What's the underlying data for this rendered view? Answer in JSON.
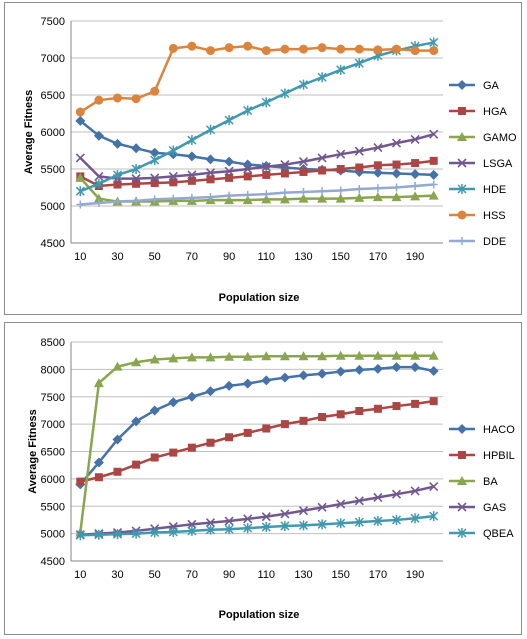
{
  "chart_data": [
    {
      "type": "line",
      "xlabel": "Population size",
      "ylabel": "Average Fitness",
      "ylim": [
        4500,
        7500
      ],
      "yticks": [
        4500,
        5000,
        5500,
        6000,
        6500,
        7000,
        7500
      ],
      "xticks": [
        10,
        30,
        50,
        70,
        90,
        110,
        130,
        150,
        170,
        190
      ],
      "x": [
        10,
        20,
        30,
        40,
        50,
        60,
        70,
        80,
        90,
        100,
        110,
        120,
        130,
        140,
        150,
        160,
        170,
        180,
        190,
        200
      ],
      "grid": "horizontal",
      "legend": "right",
      "series": [
        {
          "name": "GA",
          "color": "#4573a7",
          "marker": "diamond",
          "values": [
            6150,
            5950,
            5840,
            5780,
            5720,
            5700,
            5670,
            5630,
            5600,
            5560,
            5540,
            5520,
            5500,
            5490,
            5480,
            5460,
            5450,
            5440,
            5430,
            5420
          ]
        },
        {
          "name": "HGA",
          "color": "#aa4643",
          "marker": "square",
          "values": [
            5400,
            5270,
            5290,
            5300,
            5310,
            5320,
            5340,
            5360,
            5380,
            5400,
            5420,
            5440,
            5460,
            5480,
            5500,
            5520,
            5550,
            5560,
            5580,
            5610
          ]
        },
        {
          "name": "GAMO",
          "color": "#89a54e",
          "marker": "triangle",
          "values": [
            5380,
            5100,
            5060,
            5060,
            5060,
            5070,
            5070,
            5080,
            5080,
            5080,
            5090,
            5090,
            5100,
            5100,
            5100,
            5110,
            5120,
            5120,
            5130,
            5140
          ]
        },
        {
          "name": "LSGA",
          "color": "#71588f",
          "marker": "x",
          "values": [
            5650,
            5400,
            5370,
            5370,
            5380,
            5400,
            5420,
            5450,
            5470,
            5500,
            5530,
            5560,
            5600,
            5650,
            5700,
            5740,
            5790,
            5850,
            5900,
            5970
          ]
        },
        {
          "name": "HDE",
          "color": "#4198af",
          "marker": "star",
          "values": [
            5200,
            5300,
            5420,
            5500,
            5620,
            5750,
            5890,
            6030,
            6160,
            6290,
            6400,
            6520,
            6640,
            6740,
            6840,
            6930,
            7030,
            7100,
            7160,
            7210
          ]
        },
        {
          "name": "HSS",
          "color": "#db843d",
          "marker": "circle",
          "values": [
            6270,
            6430,
            6460,
            6450,
            6550,
            7130,
            7160,
            7100,
            7140,
            7160,
            7100,
            7120,
            7120,
            7140,
            7120,
            7120,
            7110,
            7120,
            7100,
            7100
          ]
        },
        {
          "name": "DDE",
          "color": "#93a9cf",
          "marker": "plus",
          "values": [
            5020,
            5040,
            5060,
            5070,
            5090,
            5100,
            5110,
            5120,
            5140,
            5150,
            5160,
            5180,
            5190,
            5200,
            5210,
            5230,
            5240,
            5250,
            5270,
            5290
          ]
        }
      ]
    },
    {
      "type": "line",
      "xlabel": "Population size",
      "ylabel": "Average Fitness",
      "ylim": [
        4500,
        8500
      ],
      "yticks": [
        4500,
        5000,
        5500,
        6000,
        6500,
        7000,
        7500,
        8000,
        8500
      ],
      "xticks": [
        10,
        30,
        50,
        70,
        90,
        110,
        130,
        150,
        170,
        190
      ],
      "x": [
        10,
        20,
        30,
        40,
        50,
        60,
        70,
        80,
        90,
        100,
        110,
        120,
        130,
        140,
        150,
        160,
        170,
        180,
        190,
        200
      ],
      "grid": "horizontal",
      "legend": "right",
      "series": [
        {
          "name": "HACO",
          "color": "#4573a7",
          "marker": "diamond",
          "values": [
            5900,
            6300,
            6720,
            7050,
            7250,
            7400,
            7500,
            7600,
            7700,
            7740,
            7800,
            7850,
            7890,
            7920,
            7960,
            7990,
            8010,
            8040,
            8040,
            7970
          ]
        },
        {
          "name": "HPBIL",
          "color": "#aa4643",
          "marker": "square",
          "values": [
            5950,
            6030,
            6130,
            6260,
            6390,
            6480,
            6570,
            6660,
            6760,
            6840,
            6920,
            7000,
            7060,
            7130,
            7180,
            7240,
            7280,
            7330,
            7370,
            7420
          ]
        },
        {
          "name": "BA",
          "color": "#89a54e",
          "marker": "triangle",
          "values": [
            5020,
            7750,
            8050,
            8130,
            8180,
            8200,
            8220,
            8220,
            8230,
            8230,
            8240,
            8240,
            8240,
            8240,
            8250,
            8250,
            8250,
            8250,
            8250,
            8250
          ]
        },
        {
          "name": "GAS",
          "color": "#71588f",
          "marker": "x",
          "values": [
            4980,
            5000,
            5020,
            5050,
            5090,
            5130,
            5170,
            5200,
            5230,
            5270,
            5310,
            5360,
            5420,
            5480,
            5540,
            5600,
            5660,
            5720,
            5780,
            5860
          ]
        },
        {
          "name": "QBEA",
          "color": "#4198af",
          "marker": "star",
          "values": [
            4970,
            4980,
            4990,
            5000,
            5020,
            5030,
            5050,
            5070,
            5080,
            5100,
            5120,
            5140,
            5150,
            5170,
            5190,
            5210,
            5230,
            5250,
            5280,
            5320
          ]
        }
      ]
    }
  ]
}
